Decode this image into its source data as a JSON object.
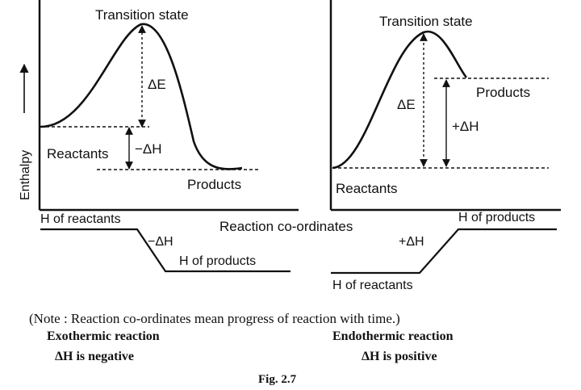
{
  "left_diagram": {
    "transition_state": "Transition state",
    "delta_e": "ΔE",
    "reactants": "Reactants",
    "delta_h": "−ΔH",
    "products": "Products",
    "y_axis": "Enthalpy"
  },
  "right_diagram": {
    "transition_state": "Transition state",
    "delta_e": "ΔE",
    "delta_h": "+ΔH",
    "products": "Products",
    "reactants": "Reactants"
  },
  "x_axis": "Reaction co-ordinates",
  "exo_level": {
    "h_reactants": "H of reactants",
    "delta_h": "−ΔH",
    "h_products": "H of products"
  },
  "endo_level": {
    "h_products": "H of products",
    "delta_h": "+ΔH",
    "h_reactants": "H of reactants"
  },
  "note": "(Note : Reaction co-ordinates mean progress of reaction with time.)",
  "exothermic": {
    "title": "Exothermic reaction",
    "sign": "ΔH is negative"
  },
  "endothermic": {
    "title": "Endothermic reaction",
    "sign": "ΔH is positive"
  },
  "figure_label": "Fig. 2.7"
}
